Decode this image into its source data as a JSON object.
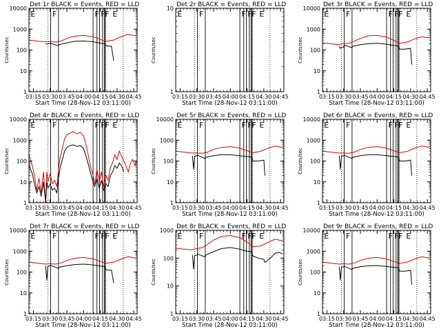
{
  "figure": {
    "xlabel": "Start Time (28-Nov-12 03:11:00)",
    "ylabel": "Counts/sec",
    "time_ticks": [
      "03:15",
      "03:30",
      "03:45",
      "04:00",
      "04:15",
      "04:30",
      "04:45"
    ],
    "time_tick_minutes": [
      15,
      30,
      45,
      60,
      75,
      90,
      105
    ],
    "xlim_minutes": [
      11,
      108
    ],
    "vlines_solid_minutes": [
      30.5,
      37.5,
      68.5,
      72.0,
      74.3,
      77.0,
      78.6,
      79.6
    ],
    "vlines_dotted_minutes": [
      28.0,
      79.0,
      95.5
    ],
    "flag_labels": [
      {
        "text": "E",
        "minute": 12.5
      },
      {
        "text": "F",
        "minute": 32.0
      },
      {
        "text": "F",
        "minute": 70.0
      },
      {
        "text": "F",
        "minute": 75.5
      },
      {
        "text": "F",
        "minute": 79.2
      },
      {
        "text": "E",
        "minute": 86.0
      }
    ]
  },
  "colors": {
    "events": "#000000",
    "lld": "#e00000",
    "axis": "#000000"
  },
  "chart_data": [
    {
      "type": "line",
      "title": "Det 1r BLACK = Events, RED = LLD",
      "ylim": [
        1,
        10000
      ],
      "yscale": "log",
      "yticks": [
        "1",
        "10",
        "100",
        "1000",
        "10000"
      ],
      "series": [
        {
          "name": "LLD",
          "color": "red",
          "x": [
            11,
            20,
            26,
            30,
            35,
            40,
            45,
            52,
            60,
            68,
            75,
            80,
            87,
            93,
            100,
            107
          ],
          "y": [
            300,
            260,
            250,
            255,
            240,
            270,
            360,
            460,
            500,
            440,
            320,
            260,
            300,
            420,
            560,
            480
          ]
        },
        {
          "name": "Events",
          "color": "black",
          "x": [
            26,
            27,
            28,
            30,
            30.5,
            37.5,
            38,
            45,
            52,
            60,
            68.5,
            72,
            74.3,
            77,
            79.6,
            80,
            85,
            87
          ],
          "y": [
            200,
            190,
            200,
            205,
            210,
            160,
            180,
            220,
            260,
            270,
            250,
            230,
            215,
            205,
            200,
            160,
            150,
            30
          ]
        }
      ]
    },
    {
      "type": "line",
      "title": "Det 2r BLACK = Events, RED = LLD",
      "ylim": [
        1,
        10
      ],
      "yscale": "log",
      "yticks": [
        "1",
        "10"
      ],
      "series": []
    },
    {
      "type": "line",
      "title": "Det 3r BLACK = Events, RED = LLD",
      "ylim": [
        1,
        10000
      ],
      "yscale": "log",
      "yticks": [
        "1",
        "10",
        "100",
        "1000",
        "10000"
      ],
      "series": [
        {
          "name": "LLD",
          "color": "red",
          "x": [
            11,
            18,
            25,
            30,
            35,
            40,
            45,
            52,
            60,
            68,
            75,
            80,
            87,
            93,
            100,
            107
          ],
          "y": [
            220,
            200,
            180,
            200,
            210,
            270,
            360,
            480,
            500,
            420,
            290,
            210,
            240,
            330,
            430,
            380
          ]
        },
        {
          "name": "Events",
          "color": "black",
          "x": [
            26,
            27,
            28,
            30,
            30.5,
            37.5,
            38,
            45,
            52,
            60,
            68.5,
            72,
            74.3,
            77,
            79.6,
            80,
            85,
            90,
            91
          ],
          "y": [
            150,
            120,
            130,
            140,
            170,
            130,
            150,
            180,
            200,
            210,
            190,
            175,
            165,
            160,
            150,
            110,
            110,
            120,
            20
          ]
        }
      ]
    },
    {
      "type": "line",
      "title": "Det 4r BLACK = Events, RED = LLD",
      "ylim": [
        1,
        10000
      ],
      "yscale": "log",
      "yticks": [
        "1",
        "10",
        "100",
        "1000",
        "10000"
      ],
      "series": [
        {
          "name": "LLD",
          "color": "red",
          "x": [
            11,
            14,
            16,
            18,
            20,
            22,
            24,
            26,
            27,
            28,
            30,
            32,
            34,
            36,
            37.5,
            39,
            41,
            43,
            45,
            48,
            51,
            54,
            57,
            60,
            63,
            66,
            68.5,
            70,
            72,
            74,
            76,
            78,
            80,
            82,
            84,
            86,
            88,
            90,
            92,
            94,
            96,
            98,
            100,
            102,
            104,
            106,
            107
          ],
          "y": [
            200,
            60,
            20,
            4,
            15,
            3,
            30,
            1,
            30,
            10,
            25,
            8,
            12,
            6,
            40,
            150,
            400,
            1200,
            1800,
            2200,
            2500,
            2000,
            2400,
            1600,
            400,
            60,
            20,
            8,
            40,
            10,
            30,
            6,
            20,
            12,
            50,
            80,
            200,
            120,
            300,
            180,
            100,
            60,
            30,
            80,
            120,
            60,
            100
          ]
        },
        {
          "name": "Events",
          "color": "black",
          "x": [
            11,
            14,
            16,
            18,
            20,
            22,
            24,
            26,
            27,
            28,
            30,
            32,
            34,
            36,
            37.5,
            39,
            41,
            43,
            45,
            48,
            51,
            54,
            57,
            60,
            63,
            66,
            68.5,
            70,
            72,
            74,
            76,
            78,
            80,
            82,
            84,
            86,
            88,
            90,
            92,
            94,
            96
          ],
          "y": [
            60,
            25,
            8,
            3,
            6,
            2,
            10,
            1,
            10,
            5,
            8,
            4,
            5,
            3,
            15,
            50,
            120,
            300,
            450,
            550,
            600,
            500,
            550,
            400,
            120,
            30,
            10,
            6,
            15,
            5,
            12,
            4,
            8,
            6,
            20,
            30,
            60,
            45,
            80,
            60,
            30
          ]
        }
      ]
    },
    {
      "type": "line",
      "title": "Det 5r BLACK = Events, RED = LLD",
      "ylim": [
        1,
        10000
      ],
      "yscale": "log",
      "yticks": [
        "1",
        "10",
        "100",
        "1000",
        "10000"
      ],
      "series": [
        {
          "name": "LLD",
          "color": "red",
          "x": [
            11,
            20,
            26,
            30,
            35,
            40,
            45,
            52,
            60,
            68,
            75,
            80,
            87,
            93,
            100,
            107
          ],
          "y": [
            300,
            260,
            240,
            245,
            235,
            270,
            360,
            450,
            490,
            420,
            310,
            250,
            290,
            400,
            520,
            450
          ]
        },
        {
          "name": "Events",
          "color": "black",
          "x": [
            26,
            27,
            28,
            30,
            30.5,
            37.5,
            38,
            45,
            52,
            60,
            68.5,
            72,
            74.3,
            77,
            79.6,
            80,
            85,
            90,
            91
          ],
          "y": [
            180,
            40,
            170,
            180,
            190,
            130,
            150,
            180,
            200,
            200,
            180,
            170,
            165,
            160,
            150,
            100,
            100,
            110,
            20
          ]
        }
      ]
    },
    {
      "type": "line",
      "title": "Det 6r BLACK = Events, RED = LLD",
      "ylim": [
        1,
        10000
      ],
      "yscale": "log",
      "yticks": [
        "1",
        "10",
        "100",
        "1000",
        "10000"
      ],
      "series": [
        {
          "name": "LLD",
          "color": "red",
          "x": [
            11,
            20,
            26,
            30,
            35,
            40,
            45,
            52,
            60,
            68,
            75,
            80,
            87,
            93,
            100,
            107
          ],
          "y": [
            300,
            260,
            240,
            245,
            235,
            270,
            360,
            450,
            490,
            420,
            310,
            250,
            290,
            400,
            520,
            450
          ]
        },
        {
          "name": "Events",
          "color": "black",
          "x": [
            26,
            27,
            28,
            30,
            30.5,
            37.5,
            38,
            45,
            52,
            60,
            68.5,
            72,
            74.3,
            77,
            79.6,
            80,
            85,
            90,
            91
          ],
          "y": [
            180,
            40,
            170,
            180,
            190,
            130,
            150,
            180,
            200,
            200,
            180,
            170,
            165,
            160,
            150,
            100,
            100,
            110,
            20
          ]
        }
      ]
    },
    {
      "type": "line",
      "title": "Det 7r BLACK = Events, RED = LLD",
      "ylim": [
        1,
        10000
      ],
      "yscale": "log",
      "yticks": [
        "1",
        "10",
        "100",
        "1000",
        "10000"
      ],
      "series": [
        {
          "name": "LLD",
          "color": "red",
          "x": [
            11,
            20,
            26,
            30,
            35,
            40,
            45,
            52,
            60,
            68,
            75,
            80,
            87,
            93,
            100,
            107
          ],
          "y": [
            300,
            260,
            240,
            250,
            240,
            275,
            360,
            460,
            500,
            430,
            320,
            260,
            300,
            410,
            540,
            460
          ]
        },
        {
          "name": "Events",
          "color": "black",
          "x": [
            26,
            27,
            28,
            30,
            30.5,
            37.5,
            38,
            45,
            52,
            60,
            68.5,
            72,
            74.3,
            77,
            79.6,
            80,
            85,
            87
          ],
          "y": [
            200,
            40,
            190,
            200,
            210,
            150,
            170,
            200,
            230,
            240,
            220,
            205,
            195,
            190,
            180,
            130,
            120,
            30
          ]
        }
      ]
    },
    {
      "type": "line",
      "title": "Det 8r BLACK = Events, RED = LLD",
      "ylim": [
        1,
        1000
      ],
      "yscale": "log",
      "yticks": [
        "1",
        "10",
        "100",
        "1000"
      ],
      "series": [
        {
          "name": "LLD",
          "color": "red",
          "x": [
            11,
            18,
            25,
            30,
            35,
            40,
            45,
            52,
            60,
            68,
            75,
            80,
            87,
            93,
            100,
            107
          ],
          "y": [
            230,
            210,
            200,
            220,
            240,
            320,
            450,
            600,
            650,
            550,
            380,
            260,
            270,
            360,
            480,
            420
          ]
        },
        {
          "name": "Events",
          "color": "black",
          "x": [
            26,
            27,
            28,
            30,
            30.5,
            37.5,
            38,
            45,
            52,
            60,
            68.5,
            72,
            74.3,
            77,
            79.6,
            80,
            85,
            90,
            91,
            97,
            100,
            104,
            107
          ],
          "y": [
            130,
            40,
            120,
            130,
            140,
            110,
            130,
            170,
            220,
            240,
            210,
            190,
            180,
            175,
            165,
            120,
            100,
            90,
            70,
            110,
            150,
            160,
            140
          ]
        }
      ]
    },
    {
      "type": "line",
      "title": "Det 9r BLACK = Events, RED = LLD",
      "ylim": [
        1,
        10000
      ],
      "yscale": "log",
      "yticks": [
        "1",
        "10",
        "100",
        "1000",
        "10000"
      ],
      "series": [
        {
          "name": "LLD",
          "color": "red",
          "x": [
            11,
            20,
            26,
            30,
            35,
            40,
            45,
            52,
            60,
            68,
            75,
            80,
            87,
            93,
            100,
            107
          ],
          "y": [
            300,
            260,
            240,
            250,
            240,
            275,
            360,
            460,
            500,
            430,
            320,
            260,
            300,
            410,
            540,
            460
          ]
        },
        {
          "name": "Events",
          "color": "black",
          "x": [
            26,
            27,
            28,
            30,
            30.5,
            37.5,
            38,
            45,
            52,
            60,
            68.5,
            72,
            74.3,
            77,
            79.6,
            80,
            85,
            90,
            91
          ],
          "y": [
            180,
            40,
            170,
            180,
            190,
            130,
            150,
            180,
            200,
            205,
            185,
            175,
            170,
            165,
            155,
            110,
            110,
            120,
            25
          ]
        }
      ]
    }
  ]
}
